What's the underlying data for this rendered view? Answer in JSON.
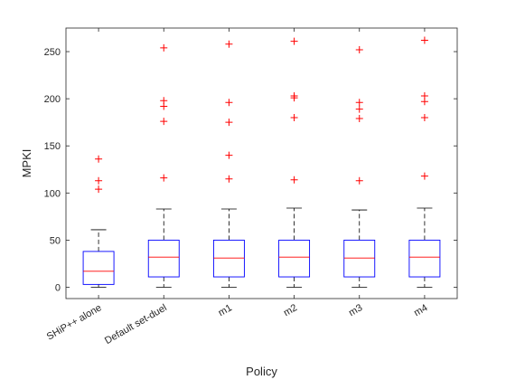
{
  "chart_data": {
    "type": "box",
    "xlabel": "Policy",
    "ylabel": "MPKI",
    "ylim": [
      -12,
      275
    ],
    "yticks": [
      0,
      50,
      100,
      150,
      200,
      250
    ],
    "grid": false,
    "categories": [
      "SHiP++ alone",
      "Default set-duel",
      "m1",
      "m2",
      "m3",
      "m4"
    ],
    "boxes": [
      {
        "category": "SHiP++ alone",
        "whisker_low": 0,
        "q1": 3,
        "median": 17,
        "q3": 38,
        "whisker_high": 61,
        "outliers": [
          104,
          113,
          136
        ]
      },
      {
        "category": "Default set-duel",
        "whisker_low": 0,
        "q1": 11,
        "median": 32,
        "q3": 50,
        "whisker_high": 83,
        "outliers": [
          116,
          176,
          192,
          198,
          254
        ]
      },
      {
        "category": "m1",
        "whisker_low": 0,
        "q1": 11,
        "median": 31,
        "q3": 50,
        "whisker_high": 83,
        "outliers": [
          115,
          140,
          175,
          196,
          258
        ]
      },
      {
        "category": "m2",
        "whisker_low": 0,
        "q1": 11,
        "median": 32,
        "q3": 50,
        "whisker_high": 84,
        "outliers": [
          114,
          180,
          201,
          203,
          261
        ]
      },
      {
        "category": "m3",
        "whisker_low": 0,
        "q1": 11,
        "median": 31,
        "q3": 50,
        "whisker_high": 82,
        "outliers": [
          113,
          179,
          189,
          196,
          252
        ]
      },
      {
        "category": "m4",
        "whisker_low": 0,
        "q1": 11,
        "median": 32,
        "q3": 50,
        "whisker_high": 84,
        "outliers": [
          118,
          180,
          197,
          203,
          262
        ]
      }
    ],
    "colors": {
      "box": "#0000ff",
      "median": "#ff0000",
      "whisker": "#000000",
      "outlier": "#ff0000",
      "axis": "#262626"
    }
  }
}
